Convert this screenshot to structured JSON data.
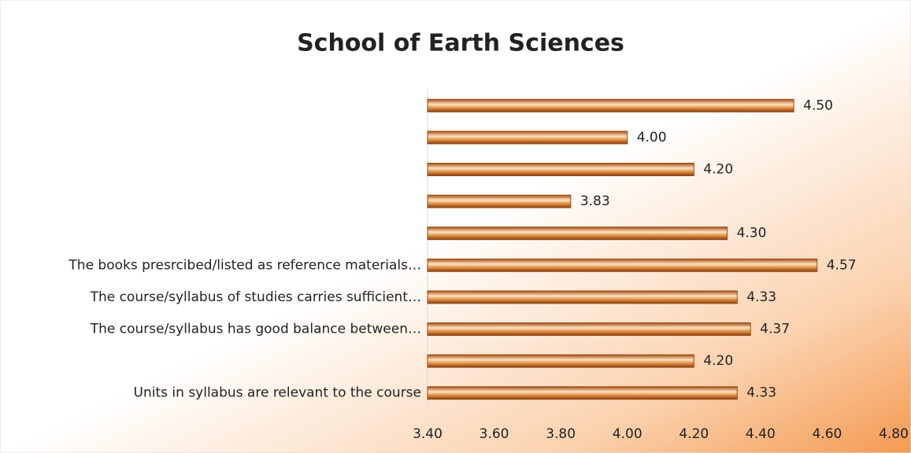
{
  "chart_data": {
    "type": "hbar",
    "title": "School of Earth Sciences",
    "categories": [
      null,
      null,
      null,
      null,
      null,
      "The books presrcibed/listed as reference materials…",
      "The course/syllabus of studies carries sufficient…",
      "The course/syllabus has good balance between…",
      null,
      "Units in syllabus are relevant to the course"
    ],
    "values": [
      4.5,
      4.0,
      4.2,
      3.83,
      4.3,
      4.57,
      4.33,
      4.37,
      4.2,
      4.33
    ],
    "value_labels": [
      "4.50",
      "4.00",
      "4.20",
      "3.83",
      "4.30",
      "4.57",
      "4.33",
      "4.37",
      "4.20",
      "4.33"
    ],
    "color": "#d9772a",
    "xlim": [
      3.4,
      4.8
    ],
    "xticks": [
      {
        "value": 3.4,
        "label": "3.40"
      },
      {
        "value": 3.6,
        "label": "3.60"
      },
      {
        "value": 3.8,
        "label": "3.80"
      },
      {
        "value": 4.0,
        "label": "4.00"
      },
      {
        "value": 4.2,
        "label": "4.20"
      },
      {
        "value": 4.4,
        "label": "4.40"
      },
      {
        "value": 4.6,
        "label": "4.60"
      },
      {
        "value": 4.8,
        "label": "4.80"
      }
    ],
    "grid": false
  }
}
